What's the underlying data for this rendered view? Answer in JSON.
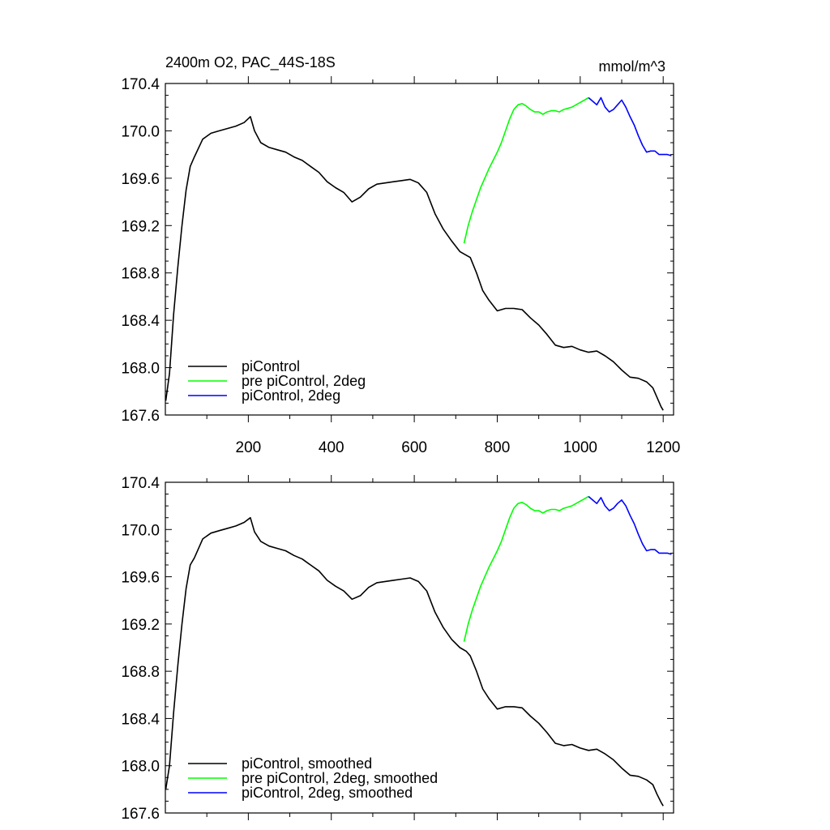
{
  "figure": {
    "title_left": "2400m O2, PAC_44S-18S",
    "title_right": "mmol/m^3"
  },
  "chart_data": [
    {
      "type": "line",
      "xlim": [
        0,
        1225
      ],
      "ylim": [
        167.6,
        170.4
      ],
      "xticks": [
        200,
        400,
        600,
        800,
        1000,
        1200
      ],
      "xtick_labels": [
        "200",
        "400",
        "600",
        "800",
        "1000",
        "1200"
      ],
      "yticks": [
        167.6,
        168.0,
        168.4,
        168.8,
        169.2,
        169.6,
        170.0,
        170.4
      ],
      "ytick_labels": [
        "167.6",
        "168.0",
        "168.4",
        "168.8",
        "169.2",
        "169.6",
        "170.0",
        "170.4"
      ],
      "grid": false,
      "legend_position": "bottom-left",
      "series": [
        {
          "name": "piControl",
          "color": "#000000",
          "points": [
            [
              1,
              167.72
            ],
            [
              10,
              167.95
            ],
            [
              20,
              168.45
            ],
            [
              30,
              168.85
            ],
            [
              40,
              169.2
            ],
            [
              50,
              169.5
            ],
            [
              60,
              169.7
            ],
            [
              70,
              169.78
            ],
            [
              90,
              169.93
            ],
            [
              110,
              169.98
            ],
            [
              130,
              170.0
            ],
            [
              150,
              170.02
            ],
            [
              170,
              170.04
            ],
            [
              190,
              170.07
            ],
            [
              205,
              170.12
            ],
            [
              215,
              170.0
            ],
            [
              230,
              169.9
            ],
            [
              250,
              169.86
            ],
            [
              270,
              169.84
            ],
            [
              290,
              169.82
            ],
            [
              310,
              169.78
            ],
            [
              330,
              169.75
            ],
            [
              350,
              169.7
            ],
            [
              370,
              169.65
            ],
            [
              390,
              169.57
            ],
            [
              410,
              169.52
            ],
            [
              430,
              169.48
            ],
            [
              450,
              169.4
            ],
            [
              470,
              169.44
            ],
            [
              490,
              169.51
            ],
            [
              510,
              169.55
            ],
            [
              530,
              169.56
            ],
            [
              550,
              169.57
            ],
            [
              570,
              169.58
            ],
            [
              590,
              169.59
            ],
            [
              610,
              169.56
            ],
            [
              630,
              169.48
            ],
            [
              650,
              169.3
            ],
            [
              670,
              169.17
            ],
            [
              690,
              169.07
            ],
            [
              710,
              168.98
            ],
            [
              725,
              168.95
            ],
            [
              735,
              168.93
            ],
            [
              750,
              168.8
            ],
            [
              765,
              168.65
            ],
            [
              780,
              168.57
            ],
            [
              800,
              168.48
            ],
            [
              820,
              168.5
            ],
            [
              840,
              168.5
            ],
            [
              860,
              168.49
            ],
            [
              880,
              168.42
            ],
            [
              900,
              168.36
            ],
            [
              920,
              168.28
            ],
            [
              940,
              168.19
            ],
            [
              960,
              168.17
            ],
            [
              980,
              168.18
            ],
            [
              1000,
              168.15
            ],
            [
              1020,
              168.13
            ],
            [
              1040,
              168.14
            ],
            [
              1060,
              168.1
            ],
            [
              1080,
              168.05
            ],
            [
              1100,
              167.98
            ],
            [
              1120,
              167.92
            ],
            [
              1140,
              167.91
            ],
            [
              1160,
              167.88
            ],
            [
              1175,
              167.83
            ],
            [
              1185,
              167.75
            ],
            [
              1195,
              167.67
            ],
            [
              1200,
              167.64
            ]
          ]
        },
        {
          "name": "pre piControl, 2deg",
          "color": "#00ff00",
          "points": [
            [
              720,
              169.05
            ],
            [
              730,
              169.2
            ],
            [
              740,
              169.32
            ],
            [
              750,
              169.42
            ],
            [
              760,
              169.52
            ],
            [
              770,
              169.6
            ],
            [
              780,
              169.68
            ],
            [
              790,
              169.75
            ],
            [
              800,
              169.82
            ],
            [
              810,
              169.9
            ],
            [
              820,
              170.0
            ],
            [
              830,
              170.1
            ],
            [
              840,
              170.18
            ],
            [
              850,
              170.22
            ],
            [
              860,
              170.23
            ],
            [
              870,
              170.21
            ],
            [
              880,
              170.18
            ],
            [
              890,
              170.16
            ],
            [
              900,
              170.16
            ],
            [
              910,
              170.14
            ],
            [
              920,
              170.16
            ],
            [
              930,
              170.17
            ],
            [
              940,
              170.17
            ],
            [
              950,
              170.16
            ],
            [
              960,
              170.18
            ],
            [
              970,
              170.19
            ],
            [
              980,
              170.2
            ],
            [
              990,
              170.22
            ],
            [
              1000,
              170.24
            ],
            [
              1010,
              170.26
            ],
            [
              1020,
              170.28
            ]
          ]
        },
        {
          "name": "piControl, 2deg",
          "color": "#0000ff",
          "points": [
            [
              1020,
              170.28
            ],
            [
              1030,
              170.25
            ],
            [
              1040,
              170.22
            ],
            [
              1050,
              170.28
            ],
            [
              1060,
              170.2
            ],
            [
              1070,
              170.16
            ],
            [
              1080,
              170.18
            ],
            [
              1090,
              170.22
            ],
            [
              1100,
              170.26
            ],
            [
              1110,
              170.2
            ],
            [
              1120,
              170.12
            ],
            [
              1130,
              170.05
            ],
            [
              1140,
              169.96
            ],
            [
              1150,
              169.88
            ],
            [
              1160,
              169.82
            ],
            [
              1170,
              169.83
            ],
            [
              1180,
              169.83
            ],
            [
              1190,
              169.8
            ],
            [
              1200,
              169.8
            ],
            [
              1210,
              169.8
            ],
            [
              1220,
              169.79
            ]
          ]
        }
      ]
    },
    {
      "type": "line",
      "xlim": [
        0,
        1225
      ],
      "ylim": [
        167.6,
        170.4
      ],
      "xticks": [
        200,
        400,
        600,
        800,
        1000,
        1200
      ],
      "yticks": [
        167.6,
        168.0,
        168.4,
        168.8,
        169.2,
        169.6,
        170.0,
        170.4
      ],
      "ytick_labels": [
        "167.6",
        "168.0",
        "168.4",
        "168.8",
        "169.2",
        "169.6",
        "170.0",
        "170.4"
      ],
      "grid": false,
      "legend_position": "bottom-left",
      "series": [
        {
          "name": "piControl, smoothed",
          "color": "#000000",
          "points": [
            [
              1,
              167.8
            ],
            [
              10,
              168.0
            ],
            [
              20,
              168.45
            ],
            [
              30,
              168.85
            ],
            [
              40,
              169.2
            ],
            [
              50,
              169.5
            ],
            [
              60,
              169.7
            ],
            [
              70,
              169.76
            ],
            [
              90,
              169.92
            ],
            [
              110,
              169.97
            ],
            [
              130,
              169.99
            ],
            [
              150,
              170.01
            ],
            [
              170,
              170.03
            ],
            [
              190,
              170.06
            ],
            [
              205,
              170.1
            ],
            [
              215,
              169.98
            ],
            [
              230,
              169.9
            ],
            [
              250,
              169.86
            ],
            [
              270,
              169.84
            ],
            [
              290,
              169.82
            ],
            [
              310,
              169.78
            ],
            [
              330,
              169.75
            ],
            [
              350,
              169.7
            ],
            [
              370,
              169.65
            ],
            [
              390,
              169.57
            ],
            [
              410,
              169.52
            ],
            [
              430,
              169.48
            ],
            [
              450,
              169.41
            ],
            [
              470,
              169.44
            ],
            [
              490,
              169.51
            ],
            [
              510,
              169.55
            ],
            [
              530,
              169.56
            ],
            [
              550,
              169.57
            ],
            [
              570,
              169.58
            ],
            [
              590,
              169.59
            ],
            [
              610,
              169.56
            ],
            [
              630,
              169.48
            ],
            [
              650,
              169.3
            ],
            [
              670,
              169.17
            ],
            [
              690,
              169.07
            ],
            [
              710,
              169.0
            ],
            [
              725,
              168.97
            ],
            [
              735,
              168.93
            ],
            [
              750,
              168.8
            ],
            [
              765,
              168.65
            ],
            [
              780,
              168.57
            ],
            [
              800,
              168.48
            ],
            [
              820,
              168.5
            ],
            [
              840,
              168.5
            ],
            [
              860,
              168.49
            ],
            [
              880,
              168.42
            ],
            [
              900,
              168.36
            ],
            [
              920,
              168.28
            ],
            [
              940,
              168.19
            ],
            [
              960,
              168.17
            ],
            [
              980,
              168.18
            ],
            [
              1000,
              168.15
            ],
            [
              1020,
              168.13
            ],
            [
              1040,
              168.14
            ],
            [
              1060,
              168.1
            ],
            [
              1080,
              168.05
            ],
            [
              1100,
              167.98
            ],
            [
              1120,
              167.92
            ],
            [
              1140,
              167.91
            ],
            [
              1160,
              167.88
            ],
            [
              1175,
              167.84
            ],
            [
              1185,
              167.76
            ],
            [
              1195,
              167.69
            ],
            [
              1200,
              167.66
            ]
          ]
        },
        {
          "name": "pre piControl, 2deg, smoothed",
          "color": "#00ff00",
          "points": [
            [
              720,
              169.05
            ],
            [
              730,
              169.2
            ],
            [
              740,
              169.32
            ],
            [
              750,
              169.42
            ],
            [
              760,
              169.52
            ],
            [
              770,
              169.6
            ],
            [
              780,
              169.68
            ],
            [
              790,
              169.75
            ],
            [
              800,
              169.82
            ],
            [
              810,
              169.9
            ],
            [
              820,
              170.0
            ],
            [
              830,
              170.1
            ],
            [
              840,
              170.18
            ],
            [
              850,
              170.22
            ],
            [
              860,
              170.23
            ],
            [
              870,
              170.21
            ],
            [
              880,
              170.18
            ],
            [
              890,
              170.16
            ],
            [
              900,
              170.16
            ],
            [
              910,
              170.14
            ],
            [
              920,
              170.16
            ],
            [
              930,
              170.17
            ],
            [
              940,
              170.17
            ],
            [
              950,
              170.16
            ],
            [
              960,
              170.18
            ],
            [
              970,
              170.19
            ],
            [
              980,
              170.2
            ],
            [
              990,
              170.22
            ],
            [
              1000,
              170.24
            ],
            [
              1010,
              170.26
            ],
            [
              1020,
              170.28
            ]
          ]
        },
        {
          "name": "piControl, 2deg, smoothed",
          "color": "#0000ff",
          "points": [
            [
              1020,
              170.28
            ],
            [
              1030,
              170.25
            ],
            [
              1040,
              170.22
            ],
            [
              1050,
              170.27
            ],
            [
              1060,
              170.2
            ],
            [
              1070,
              170.16
            ],
            [
              1080,
              170.18
            ],
            [
              1090,
              170.22
            ],
            [
              1100,
              170.25
            ],
            [
              1110,
              170.2
            ],
            [
              1120,
              170.12
            ],
            [
              1130,
              170.05
            ],
            [
              1140,
              169.96
            ],
            [
              1150,
              169.88
            ],
            [
              1160,
              169.82
            ],
            [
              1170,
              169.83
            ],
            [
              1180,
              169.83
            ],
            [
              1190,
              169.8
            ],
            [
              1200,
              169.8
            ],
            [
              1210,
              169.8
            ],
            [
              1220,
              169.79
            ]
          ]
        }
      ]
    }
  ]
}
